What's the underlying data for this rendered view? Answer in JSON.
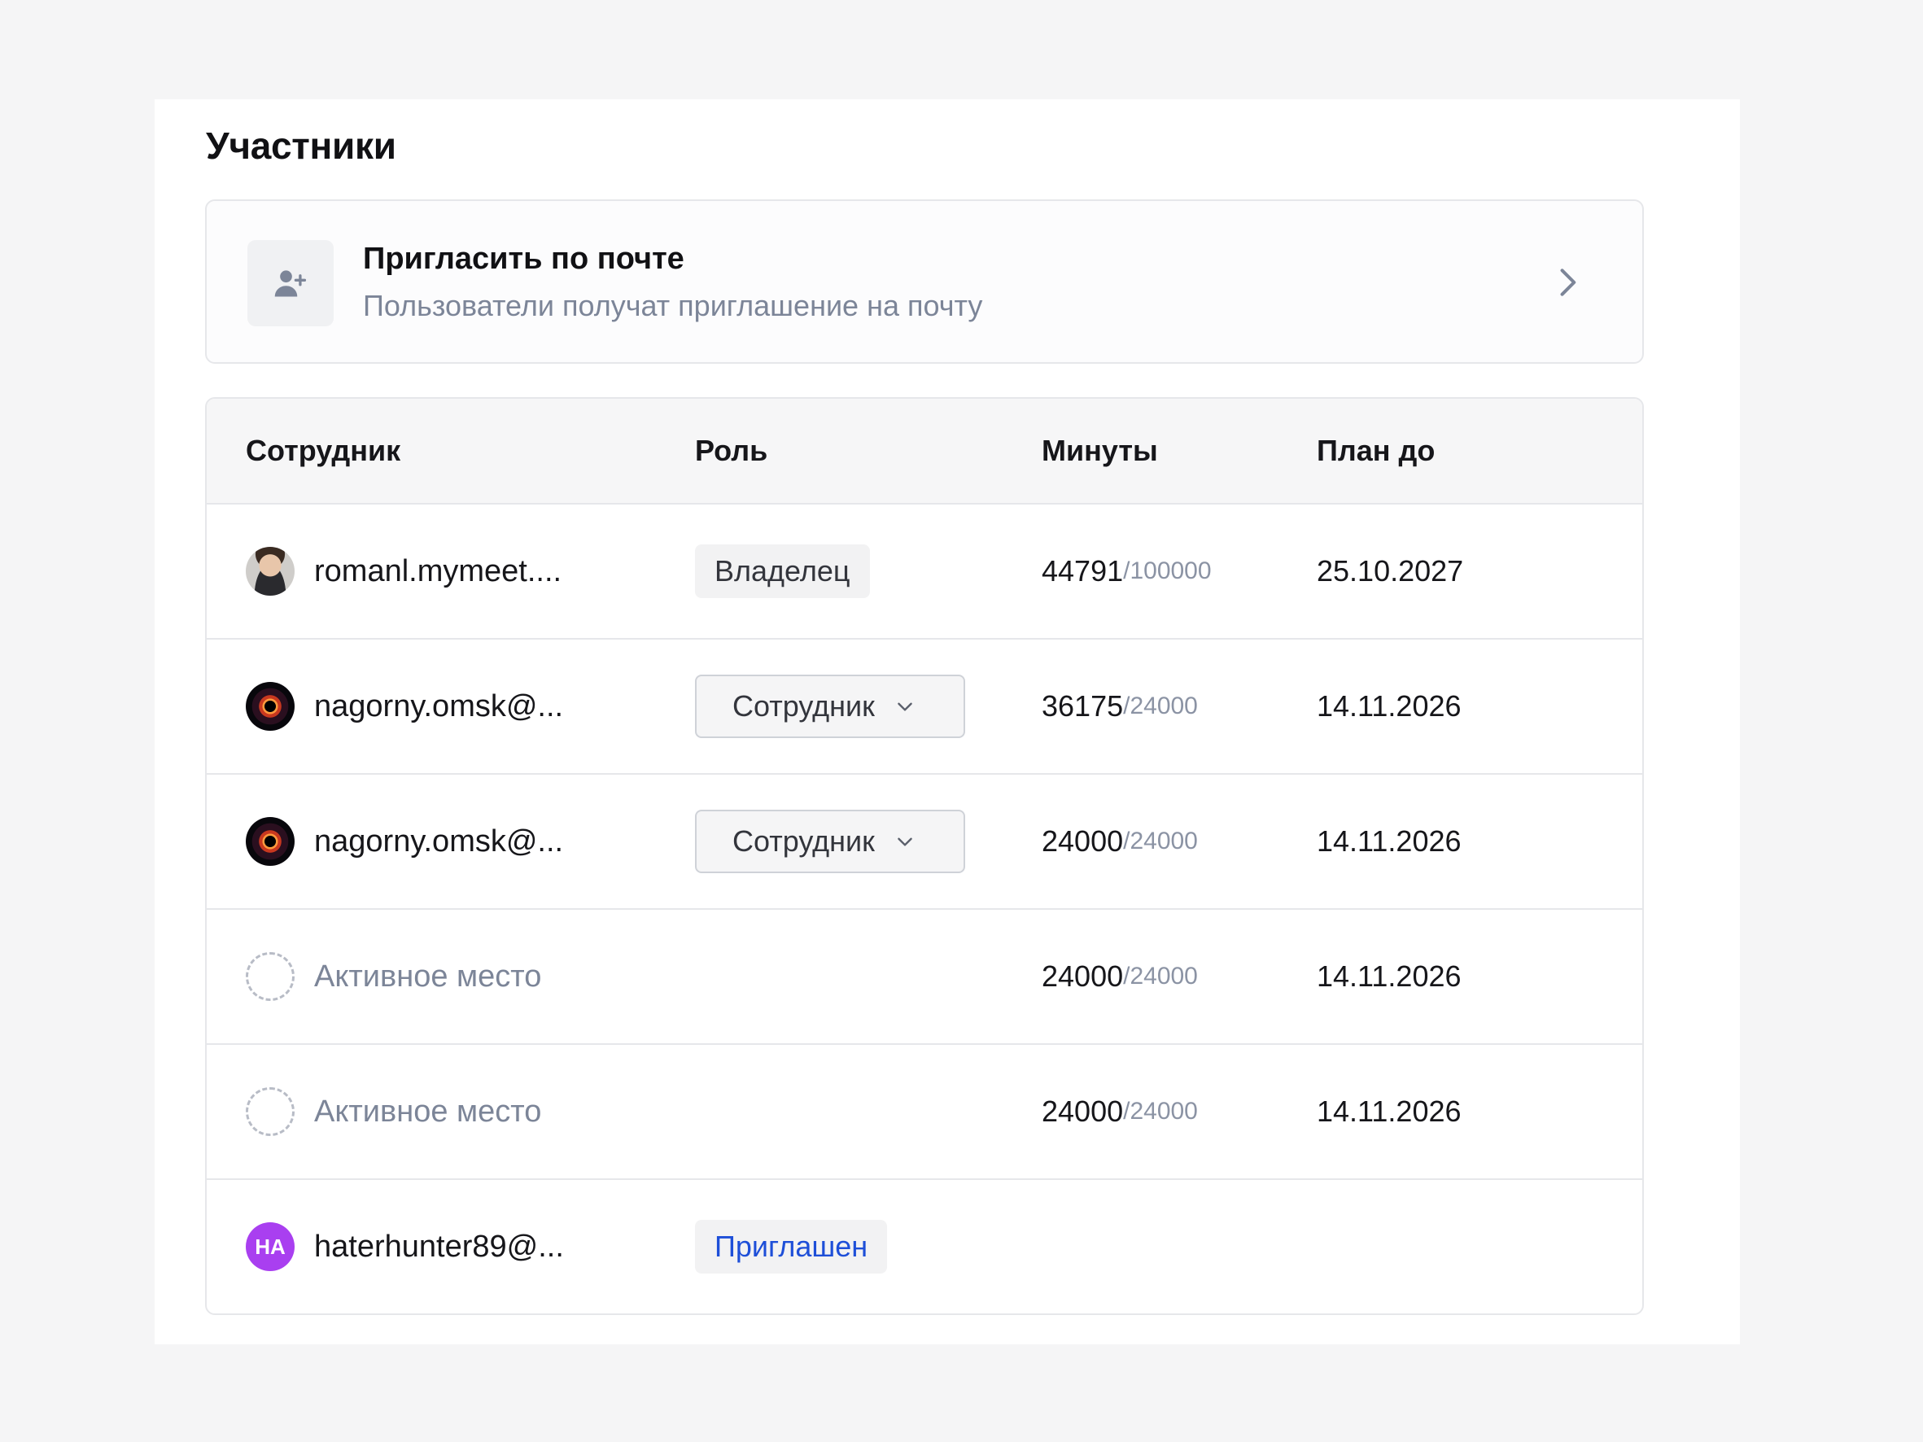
{
  "section": {
    "title": "Участники"
  },
  "invite": {
    "title": "Пригласить по почте",
    "subtitle": "Пользователи получат приглашение на почту",
    "icon": "user-plus-icon",
    "chevron": "chevron-right-icon"
  },
  "table": {
    "headers": {
      "employee": "Сотрудник",
      "role": "Роль",
      "minutes": "Минуты",
      "plan_until": "План до"
    },
    "rows": [
      {
        "avatar": "photo",
        "name": "romanl.mymeet....",
        "role_type": "badge",
        "role": "Владелец",
        "used": "44791",
        "limit": "/100000",
        "date": "25.10.2027"
      },
      {
        "avatar": "space",
        "name": "nagorny.omsk@...",
        "role_type": "select",
        "role": "Сотрудник",
        "used": "36175",
        "limit": "/24000",
        "date": "14.11.2026"
      },
      {
        "avatar": "space",
        "name": "nagorny.omsk@...",
        "role_type": "select",
        "role": "Сотрудник",
        "used": "24000",
        "limit": "/24000",
        "date": "14.11.2026"
      },
      {
        "avatar": "empty",
        "name": "Активное место",
        "role_type": "none",
        "role": "",
        "used": "24000",
        "limit": "/24000",
        "date": "14.11.2026"
      },
      {
        "avatar": "empty",
        "name": "Активное место",
        "role_type": "none",
        "role": "",
        "used": "24000",
        "limit": "/24000",
        "date": "14.11.2026"
      },
      {
        "avatar": "initials",
        "initials": "HA",
        "name": "haterhunter89@...",
        "role_type": "invited",
        "role": "Приглашен",
        "used": "",
        "limit": "",
        "date": ""
      }
    ]
  },
  "colors": {
    "invited_text": "#1e4fd8",
    "initials_avatar": "#a93ff0",
    "muted_text": "#7c8598"
  }
}
